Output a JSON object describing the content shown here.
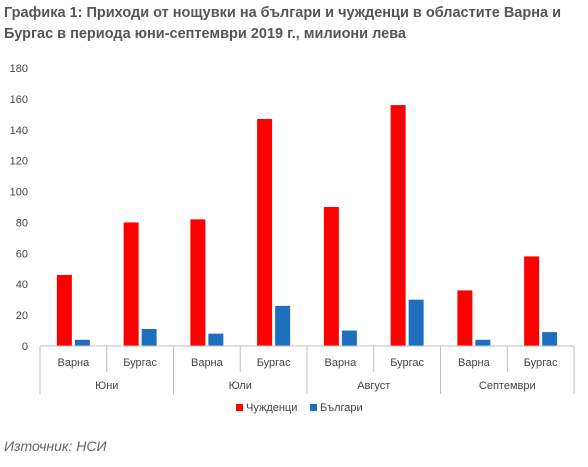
{
  "title": "Графика 1: Приходи от нощувки на българи и чужденци в областите Варна и Бургас в периода юни-септември 2019 г., милиони лева",
  "source": "Източник: НСИ",
  "chart_data": {
    "type": "bar",
    "title": "Графика 1: Приходи от нощувки на българи и чужденци в областите Варна и Бургас в периода юни-септември 2019 г., милиони лева",
    "groups": [
      "Юни",
      "Юли",
      "Август",
      "Септември"
    ],
    "categories": [
      "Варна",
      "Бургас",
      "Варна",
      "Бургас",
      "Варна",
      "Бургас",
      "Варна",
      "Бургас"
    ],
    "yticks": [
      "0",
      "20",
      "40",
      "60",
      "80",
      "100",
      "120",
      "140",
      "160",
      "180"
    ],
    "ylim": [
      0,
      180
    ],
    "grid": false,
    "legend_position": "bottom",
    "series": [
      {
        "name": "Чужденци",
        "color": "#ff0000",
        "values": [
          46,
          80,
          82,
          147,
          90,
          156,
          36,
          58
        ]
      },
      {
        "name": "Българи",
        "color": "#1f6fbf",
        "values": [
          4,
          11,
          8,
          26,
          10,
          30,
          4,
          9
        ]
      }
    ]
  }
}
